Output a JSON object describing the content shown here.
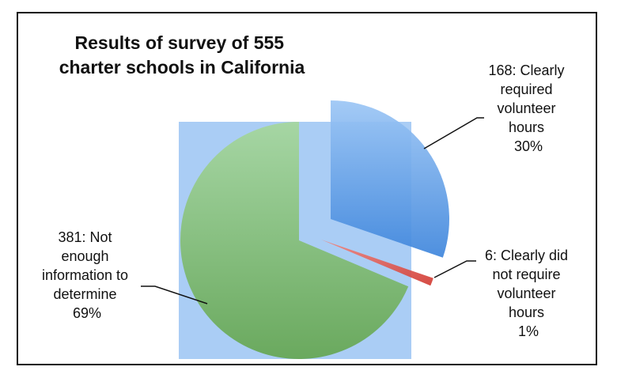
{
  "chart_data": {
    "type": "pie",
    "title_lines": [
      "Results of survey of 555",
      "charter schools in California"
    ],
    "slices": [
      {
        "count": 168,
        "percent": "30%",
        "label_lines": [
          "168: Clearly",
          "required",
          "volunteer",
          "hours",
          "30%"
        ],
        "color": "#4a8fe0"
      },
      {
        "count": 6,
        "percent": "1%",
        "label_lines": [
          "6: Clearly did",
          "not require",
          "volunteer",
          "hours",
          "1%"
        ],
        "color": "#e0504a"
      },
      {
        "count": 381,
        "percent": "69%",
        "label_lines": [
          "381: Not",
          "enough",
          "information to",
          "determine",
          "69%"
        ],
        "color": "#7fbe75"
      }
    ],
    "backdrop_color": "#aacdf5"
  }
}
